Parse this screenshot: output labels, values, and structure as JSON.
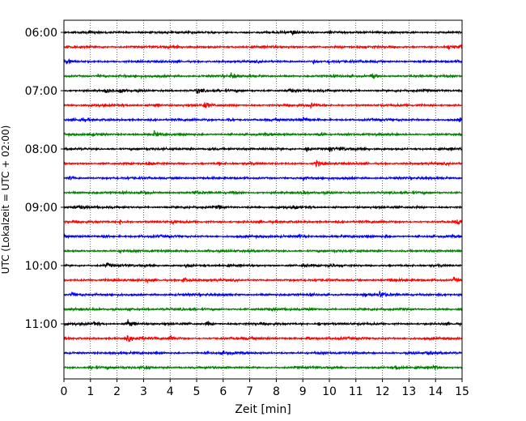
{
  "chart_data": {
    "type": "line",
    "title": "",
    "xlabel": "Zeit  [min]",
    "ylabel": "UTC (Lokalzeit = UTC + 02:00)",
    "xlim": [
      0,
      15
    ],
    "x_ticks": [
      "0",
      "1",
      "2",
      "3",
      "4",
      "5",
      "6",
      "7",
      "8",
      "9",
      "10",
      "11",
      "12",
      "13",
      "14",
      "15"
    ],
    "y_ticks": [
      {
        "label": "06:00",
        "trace_index": 0
      },
      {
        "label": "07:00",
        "trace_index": 4
      },
      {
        "label": "08:00",
        "trace_index": 8
      },
      {
        "label": "09:00",
        "trace_index": 12
      },
      {
        "label": "10:00",
        "trace_index": 16
      },
      {
        "label": "11:00",
        "trace_index": 20
      }
    ],
    "grid": {
      "vertical": true,
      "style": "dotted"
    },
    "color_cycle": [
      "#000000",
      "#ff0000",
      "#0000ff",
      "#008000"
    ],
    "traces": [
      {
        "start": "06:00",
        "events": [
          [
            8.6,
            0.6
          ],
          [
            10.0,
            0.4
          ],
          [
            14.4,
            0.4
          ]
        ]
      },
      {
        "start": "06:15",
        "events": [
          [
            14.5,
            0.8
          ],
          [
            14.9,
            0.6
          ]
        ]
      },
      {
        "start": "06:30",
        "events": [
          [
            9.4,
            0.5
          ],
          [
            10.0,
            0.5
          ],
          [
            0.1,
            0.6
          ]
        ]
      },
      {
        "start": "06:45",
        "events": [
          [
            1.3,
            0.6
          ],
          [
            6.3,
            0.9
          ],
          [
            11.6,
            0.7
          ]
        ]
      },
      {
        "start": "07:00",
        "events": [
          [
            1.6,
            0.7
          ],
          [
            2.1,
            0.8
          ],
          [
            5.0,
            0.8
          ],
          [
            8.4,
            0.6
          ]
        ]
      },
      {
        "start": "07:15",
        "events": [
          [
            3.4,
            0.5
          ],
          [
            5.3,
            0.9
          ],
          [
            9.3,
            0.6
          ]
        ]
      },
      {
        "start": "07:30",
        "events": [
          [
            0.6,
            0.6
          ],
          [
            6.2,
            0.5
          ],
          [
            9.0,
            0.8
          ],
          [
            14.9,
            0.5
          ]
        ]
      },
      {
        "start": "07:45",
        "events": [
          [
            1.0,
            0.6
          ],
          [
            3.4,
            0.7
          ],
          [
            9.6,
            0.8
          ]
        ]
      },
      {
        "start": "08:00",
        "events": [
          [
            5.5,
            0.5
          ],
          [
            9.1,
            0.8
          ],
          [
            10.0,
            0.7
          ],
          [
            10.4,
            0.5
          ]
        ]
      },
      {
        "start": "08:15",
        "events": [
          [
            3.2,
            0.7
          ],
          [
            5.8,
            0.4
          ],
          [
            9.5,
            0.9
          ]
        ]
      },
      {
        "start": "08:30",
        "events": [
          [
            0.2,
            0.5
          ],
          [
            9.0,
            0.5
          ],
          [
            4.2,
            0.3
          ]
        ]
      },
      {
        "start": "08:45",
        "events": [
          [
            3.0,
            0.6
          ],
          [
            4.9,
            0.5
          ],
          [
            6.3,
            0.4
          ],
          [
            9.0,
            0.5
          ]
        ]
      },
      {
        "start": "09:00",
        "events": [
          [
            0.4,
            0.6
          ],
          [
            5.8,
            0.5
          ],
          [
            8.6,
            0.5
          ]
        ]
      },
      {
        "start": "09:15",
        "events": [
          [
            2.1,
            0.6
          ],
          [
            4.1,
            0.7
          ],
          [
            14.8,
            0.6
          ]
        ]
      },
      {
        "start": "09:30",
        "events": [
          [
            1.5,
            0.5
          ],
          [
            8.8,
            0.6
          ],
          [
            12.1,
            0.4
          ]
        ]
      },
      {
        "start": "09:45",
        "events": [
          [
            2.1,
            0.4
          ],
          [
            5.4,
            0.4
          ]
        ]
      },
      {
        "start": "10:00",
        "events": [
          [
            1.6,
            0.7
          ],
          [
            4.6,
            0.6
          ],
          [
            9.0,
            0.5
          ],
          [
            10.0,
            0.5
          ]
        ]
      },
      {
        "start": "10:15",
        "events": [
          [
            3.1,
            0.5
          ],
          [
            4.5,
            0.7
          ],
          [
            12.3,
            0.6
          ],
          [
            14.7,
            0.7
          ]
        ]
      },
      {
        "start": "10:30",
        "events": [
          [
            0.3,
            0.6
          ],
          [
            6.0,
            0.4
          ],
          [
            11.3,
            0.9
          ],
          [
            11.9,
            1.0
          ],
          [
            14.1,
            0.5
          ]
        ]
      },
      {
        "start": "10:45",
        "events": [
          [
            2.4,
            0.5
          ],
          [
            9.2,
            0.6
          ],
          [
            14.9,
            0.3
          ]
        ]
      },
      {
        "start": "11:00",
        "events": [
          [
            1.1,
            0.6
          ],
          [
            2.4,
            1.4
          ],
          [
            5.4,
            0.6
          ],
          [
            9.6,
            0.6
          ]
        ]
      },
      {
        "start": "11:15",
        "events": [
          [
            2.4,
            0.8
          ],
          [
            2.8,
            0.6
          ],
          [
            4.0,
            0.9
          ],
          [
            9.2,
            0.6
          ]
        ]
      },
      {
        "start": "11:30",
        "events": [
          [
            6.0,
            0.4
          ],
          [
            13.7,
            0.5
          ]
        ]
      },
      {
        "start": "11:45",
        "events": [
          [
            1.0,
            0.5
          ],
          [
            3.0,
            0.5
          ],
          [
            12.5,
            0.6
          ],
          [
            13.9,
            0.7
          ]
        ]
      }
    ]
  }
}
